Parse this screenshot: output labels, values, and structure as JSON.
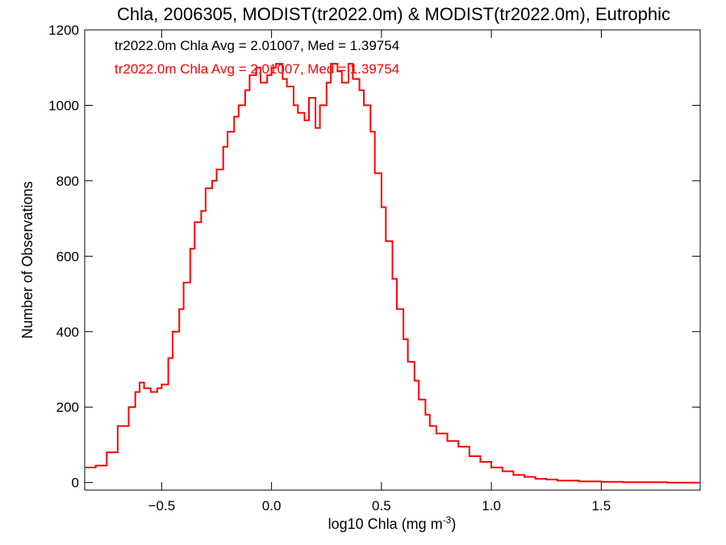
{
  "chart_data": {
    "type": "line",
    "title": "Chla, 2006305, MODIST(tr2022.0m) & MODIST(tr2022.0m), Eutrophic",
    "xlabel": "log10 Chla (mg m",
    "xlabel_sup": "-3",
    "xlabel_end": ")",
    "ylabel": "Number of Observations",
    "xlim": [
      -0.85,
      1.95
    ],
    "ylim": [
      -20,
      1200
    ],
    "xticks": [
      -0.5,
      0.0,
      0.5,
      1.0,
      1.5
    ],
    "xtick_labels": [
      "−0.5",
      "0.0",
      "0.5",
      "1.0",
      "1.5"
    ],
    "yticks": [
      0,
      200,
      400,
      600,
      800,
      1000,
      1200
    ],
    "ytick_labels": [
      "0",
      "200",
      "400",
      "600",
      "800",
      "1000",
      "1200"
    ],
    "grid": false,
    "annotations": [
      {
        "text": "tr2022.0m Chla Avg = 2.01007, Med = 1.39754",
        "color": "#000000"
      },
      {
        "text": "tr2022.0m Chla Avg = 2.01007, Med = 1.39754",
        "color": "#ff0000"
      }
    ],
    "series": [
      {
        "color": "#ff0000",
        "style": "step",
        "x": [
          -0.85,
          -0.8,
          -0.75,
          -0.7,
          -0.65,
          -0.62,
          -0.6,
          -0.58,
          -0.55,
          -0.52,
          -0.5,
          -0.47,
          -0.45,
          -0.42,
          -0.4,
          -0.37,
          -0.35,
          -0.32,
          -0.3,
          -0.27,
          -0.25,
          -0.22,
          -0.2,
          -0.17,
          -0.15,
          -0.12,
          -0.1,
          -0.07,
          -0.05,
          -0.02,
          0.0,
          0.02,
          0.05,
          0.07,
          0.1,
          0.12,
          0.15,
          0.17,
          0.2,
          0.22,
          0.25,
          0.27,
          0.3,
          0.32,
          0.35,
          0.37,
          0.4,
          0.42,
          0.45,
          0.47,
          0.5,
          0.52,
          0.55,
          0.57,
          0.6,
          0.62,
          0.65,
          0.67,
          0.7,
          0.72,
          0.75,
          0.8,
          0.85,
          0.9,
          0.95,
          1.0,
          1.05,
          1.1,
          1.15,
          1.2,
          1.25,
          1.3,
          1.4,
          1.5,
          1.6,
          1.7,
          1.8,
          1.95
        ],
        "y": [
          40,
          45,
          80,
          150,
          200,
          240,
          265,
          250,
          240,
          250,
          260,
          330,
          400,
          460,
          530,
          620,
          690,
          720,
          780,
          800,
          830,
          890,
          930,
          970,
          1000,
          1040,
          1080,
          1100,
          1060,
          1080,
          1100,
          1110,
          1070,
          1050,
          1000,
          980,
          960,
          1020,
          940,
          1000,
          1060,
          1110,
          1090,
          1060,
          1110,
          1070,
          1040,
          1000,
          930,
          820,
          730,
          640,
          540,
          460,
          380,
          320,
          270,
          220,
          180,
          150,
          130,
          110,
          95,
          70,
          55,
          40,
          30,
          20,
          15,
          10,
          8,
          5,
          3,
          2,
          1,
          1,
          0,
          0
        ]
      }
    ]
  }
}
